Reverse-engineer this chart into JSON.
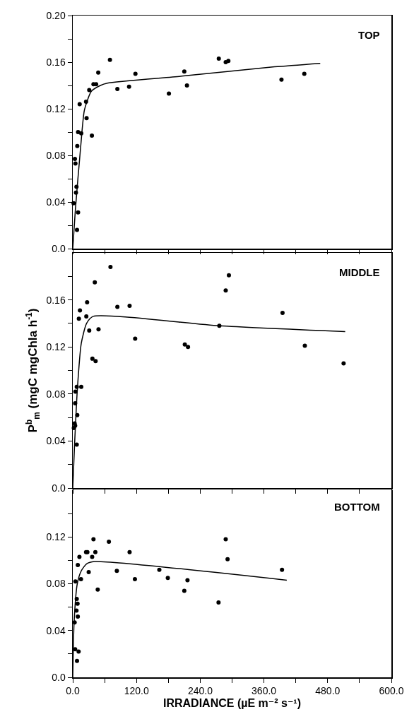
{
  "chart_data": [
    {
      "type": "scatter",
      "annotations": [
        "TOP"
      ],
      "tick_labels": "y",
      "xlim": [
        0,
        600
      ],
      "ylim": [
        0,
        0.2
      ],
      "xticks": [
        {
          "value": 0,
          "label": null
        },
        {
          "value": 60,
          "label": null
        },
        {
          "value": 120,
          "label": null
        },
        {
          "value": 180,
          "label": null
        },
        {
          "value": 240,
          "label": null
        },
        {
          "value": 300,
          "label": null
        },
        {
          "value": 360,
          "label": null
        },
        {
          "value": 420,
          "label": null
        },
        {
          "value": 480,
          "label": null
        },
        {
          "value": 540,
          "label": null
        },
        {
          "value": 600,
          "label": null
        }
      ],
      "yticks": [
        {
          "value": 0,
          "label": "0.0"
        },
        {
          "value": 0.02,
          "label": null
        },
        {
          "value": 0.04,
          "label": "0.04"
        },
        {
          "value": 0.06,
          "label": null
        },
        {
          "value": 0.08,
          "label": "0.08"
        },
        {
          "value": 0.1,
          "label": null
        },
        {
          "value": 0.12,
          "label": "0.12"
        },
        {
          "value": 0.14,
          "label": null
        },
        {
          "value": 0.16,
          "label": "0.16"
        },
        {
          "value": 0.18,
          "label": null
        },
        {
          "value": 0.2,
          "label": "0.20"
        }
      ],
      "series": [
        {
          "marker": "circle",
          "color": "#000000",
          "x": [
            70,
            48,
            39,
            44,
            31,
            25,
            13,
            26,
            10,
            16,
            36,
            8.5,
            4,
            5,
            7,
            6,
            1.5,
            10,
            8,
            84,
            106,
            118,
            181,
            210,
            215,
            275,
            288,
            293,
            393,
            436
          ],
          "values": [
            0.162,
            0.151,
            0.141,
            0.141,
            0.136,
            0.126,
            0.124,
            0.112,
            0.1,
            0.099,
            0.097,
            0.088,
            0.077,
            0.073,
            0.053,
            0.048,
            0.039,
            0.031,
            0.016,
            0.137,
            0.139,
            0.15,
            0.133,
            0.152,
            0.14,
            0.163,
            0.16,
            0.161,
            0.145,
            0.15
          ]
        },
        {
          "type": "line",
          "marker": "none",
          "color": "#000000",
          "x": [
            0,
            5,
            15,
            22,
            35,
            52,
            65,
            205,
            380,
            466
          ],
          "values": [
            0,
            0.034,
            0.088,
            0.119,
            0.135,
            0.14,
            0.142,
            0.148,
            0.156,
            0.159
          ]
        }
      ]
    },
    {
      "type": "scatter",
      "annotations": [
        "MIDDLE"
      ],
      "ylabel": "P$^{b}$$_{m}$ (mgC mgChla h$^{-1}$)",
      "tick_labels": "y",
      "xlim": [
        0,
        600
      ],
      "ylim": [
        0,
        0.2
      ],
      "xticks": [
        {
          "value": 0,
          "label": null
        },
        {
          "value": 60,
          "label": null
        },
        {
          "value": 120,
          "label": null
        },
        {
          "value": 180,
          "label": null
        },
        {
          "value": 240,
          "label": null
        },
        {
          "value": 300,
          "label": null
        },
        {
          "value": 360,
          "label": null
        },
        {
          "value": 420,
          "label": null
        },
        {
          "value": 480,
          "label": null
        },
        {
          "value": 540,
          "label": null
        },
        {
          "value": 600,
          "label": null
        }
      ],
      "yticks": [
        {
          "value": 0,
          "label": "0.0"
        },
        {
          "value": 0.02,
          "label": null
        },
        {
          "value": 0.04,
          "label": "0.04"
        },
        {
          "value": 0.06,
          "label": null
        },
        {
          "value": 0.08,
          "label": "0.08"
        },
        {
          "value": 0.1,
          "label": null
        },
        {
          "value": 0.12,
          "label": "0.12"
        },
        {
          "value": 0.14,
          "label": null
        },
        {
          "value": 0.16,
          "label": "0.16"
        },
        {
          "value": 0.18,
          "label": null
        }
      ],
      "series": [
        {
          "marker": "circle",
          "color": "#000000",
          "x": [
            71,
            41.5,
            294,
            288,
            27,
            13.5,
            11.5,
            25.5,
            84,
            107,
            31,
            48.5,
            117.5,
            211,
            217,
            276,
            395,
            437,
            510,
            37,
            43,
            16,
            7.5,
            5,
            4.5,
            8.5,
            3.5,
            4.5,
            2,
            7.5
          ],
          "values": [
            0.188,
            0.175,
            0.181,
            0.168,
            0.158,
            0.151,
            0.144,
            0.146,
            0.154,
            0.155,
            0.134,
            0.135,
            0.127,
            0.122,
            0.12,
            0.138,
            0.149,
            0.121,
            0.106,
            0.11,
            0.108,
            0.086,
            0.086,
            0.082,
            0.072,
            0.062,
            0.055,
            0.053,
            0.051,
            0.037
          ]
        },
        {
          "type": "line",
          "marker": "none",
          "color": "#000000",
          "x": [
            0,
            3.5,
            8.5,
            16,
            26,
            38.5,
            276,
            513
          ],
          "values": [
            0,
            0.038,
            0.083,
            0.123,
            0.14,
            0.146,
            0.138,
            0.133
          ]
        }
      ]
    },
    {
      "type": "scatter",
      "annotations": [
        "BOTTOM"
      ],
      "xlabel": "IRRADIANCE (µE m⁻² s⁻¹)",
      "xlim": [
        0,
        600
      ],
      "ylim": [
        0,
        0.16
      ],
      "xticks": [
        {
          "value": 0,
          "label": "0.0"
        },
        {
          "value": 60,
          "label": null
        },
        {
          "value": 120,
          "label": "120.0"
        },
        {
          "value": 180,
          "label": null
        },
        {
          "value": 240,
          "label": "240.0"
        },
        {
          "value": 300,
          "label": null
        },
        {
          "value": 360,
          "label": "360.0"
        },
        {
          "value": 420,
          "label": null
        },
        {
          "value": 480,
          "label": "480.0"
        },
        {
          "value": 540,
          "label": null
        },
        {
          "value": 600,
          "label": "600.0"
        }
      ],
      "yticks": [
        {
          "value": 0,
          "label": "0.0"
        },
        {
          "value": 0.02,
          "label": null
        },
        {
          "value": 0.04,
          "label": "0.04"
        },
        {
          "value": 0.06,
          "label": null
        },
        {
          "value": 0.08,
          "label": "0.08"
        },
        {
          "value": 0.1,
          "label": null
        },
        {
          "value": 0.12,
          "label": "0.12"
        },
        {
          "value": 0.14,
          "label": null
        }
      ],
      "series": [
        {
          "marker": "circle",
          "color": "#000000",
          "x": [
            39,
            68,
            288,
            25,
            27.5,
            42.5,
            107,
            12.5,
            36.5,
            291.5,
            9.5,
            394,
            163,
            83,
            30,
            15.5,
            117,
            179,
            216,
            5,
            47,
            210,
            274.5,
            7.5,
            9,
            7,
            9.5,
            3.5,
            4.5,
            11,
            8
          ],
          "values": [
            0.118,
            0.116,
            0.118,
            0.107,
            0.107,
            0.107,
            0.107,
            0.103,
            0.103,
            0.101,
            0.096,
            0.092,
            0.092,
            0.091,
            0.09,
            0.084,
            0.084,
            0.085,
            0.083,
            0.082,
            0.075,
            0.074,
            0.064,
            0.067,
            0.063,
            0.057,
            0.052,
            0.047,
            0.024,
            0.022,
            0.014
          ]
        },
        {
          "type": "line",
          "marker": "none",
          "color": "#000000",
          "x": [
            0,
            2.5,
            8.5,
            16,
            26,
            41,
            403
          ],
          "values": [
            0,
            0.047,
            0.08,
            0.091,
            0.097,
            0.099,
            0.083
          ]
        }
      ]
    }
  ]
}
